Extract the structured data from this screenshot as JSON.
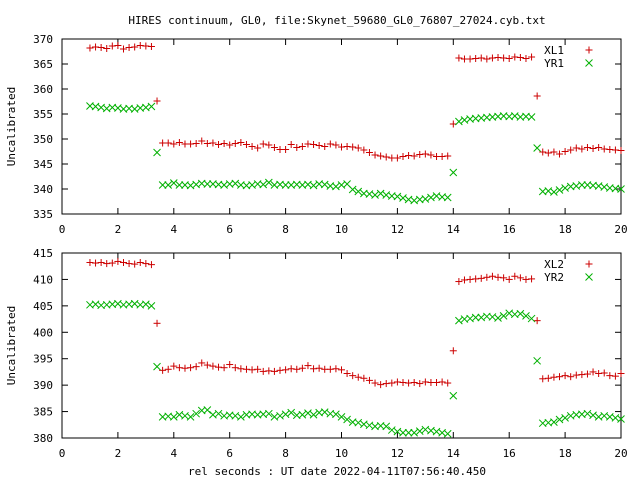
{
  "title": "HIRES continuum, GL0, file:Skynet_59680_GL0_76807_27024.cyb.txt",
  "xlabel": "rel seconds : UT date 2022-04-11T07:56:40.450",
  "chart_data": [
    {
      "type": "scatter",
      "ylabel": "Uncalibrated",
      "xlim": [
        0,
        20
      ],
      "ylim": [
        335,
        370
      ],
      "xticks": [
        0,
        2,
        4,
        6,
        8,
        10,
        12,
        14,
        16,
        18,
        20
      ],
      "yticks": [
        335,
        340,
        345,
        350,
        355,
        360,
        365,
        370
      ],
      "legend_position": "top-right",
      "series": [
        {
          "name": "XL1",
          "color": "#cc0000",
          "marker": "plus",
          "x": [
            1.0,
            1.2,
            1.4,
            1.6,
            1.8,
            2.0,
            2.2,
            2.4,
            2.6,
            2.8,
            3.0,
            3.2,
            3.4,
            3.6,
            3.8,
            4.0,
            4.2,
            4.4,
            4.6,
            4.8,
            5.0,
            5.2,
            5.4,
            5.6,
            5.8,
            6.0,
            6.2,
            6.4,
            6.6,
            6.8,
            7.0,
            7.2,
            7.4,
            7.6,
            7.8,
            8.0,
            8.2,
            8.4,
            8.6,
            8.8,
            9.0,
            9.2,
            9.4,
            9.6,
            9.8,
            10.0,
            10.2,
            10.4,
            10.6,
            10.8,
            11.0,
            11.2,
            11.4,
            11.6,
            11.8,
            12.0,
            12.2,
            12.4,
            12.6,
            12.8,
            13.0,
            13.2,
            13.4,
            13.6,
            13.8,
            14.0,
            14.2,
            14.4,
            14.6,
            14.8,
            15.0,
            15.2,
            15.4,
            15.6,
            15.8,
            16.0,
            16.2,
            16.4,
            16.6,
            16.8,
            17.0,
            17.2,
            17.4,
            17.6,
            17.8,
            18.0,
            18.2,
            18.4,
            18.6,
            18.8,
            19.0,
            19.2,
            19.4,
            19.6,
            19.8,
            20.0
          ],
          "y": [
            368.2,
            368.4,
            368.3,
            368.1,
            368.6,
            368.7,
            368.0,
            368.3,
            368.4,
            368.7,
            368.6,
            368.5,
            357.6,
            349.2,
            349.2,
            349.0,
            349.3,
            349.0,
            349.0,
            349.1,
            349.6,
            349.1,
            349.2,
            348.9,
            349.1,
            348.8,
            349.1,
            349.3,
            348.9,
            348.5,
            348.2,
            349.0,
            348.8,
            348.3,
            347.9,
            347.9,
            348.9,
            348.3,
            348.5,
            349.0,
            348.9,
            348.7,
            348.5,
            349.0,
            348.8,
            348.4,
            348.5,
            348.4,
            348.2,
            347.8,
            347.3,
            346.8,
            346.6,
            346.4,
            346.2,
            346.2,
            346.5,
            346.7,
            346.6,
            346.9,
            347.0,
            346.8,
            346.5,
            346.5,
            346.6,
            353.0,
            366.2,
            366.0,
            366.0,
            366.1,
            366.2,
            366.0,
            366.2,
            366.3,
            366.2,
            366.1,
            366.4,
            366.3,
            366.1,
            366.4,
            358.6,
            347.4,
            347.2,
            347.4,
            347.0,
            347.5,
            347.8,
            348.2,
            348.0,
            348.3,
            348.1,
            348.3,
            348.0,
            347.9,
            347.8,
            347.7
          ],
          "y_reserved_note": ""
        },
        {
          "name": "YR1",
          "color": "#00b000",
          "marker": "cross",
          "x": [
            1.0,
            1.2,
            1.4,
            1.6,
            1.8,
            2.0,
            2.2,
            2.4,
            2.6,
            2.8,
            3.0,
            3.2,
            3.4,
            3.6,
            3.8,
            4.0,
            4.2,
            4.4,
            4.6,
            4.8,
            5.0,
            5.2,
            5.4,
            5.6,
            5.8,
            6.0,
            6.2,
            6.4,
            6.6,
            6.8,
            7.0,
            7.2,
            7.4,
            7.6,
            7.8,
            8.0,
            8.2,
            8.4,
            8.6,
            8.8,
            9.0,
            9.2,
            9.4,
            9.6,
            9.8,
            10.0,
            10.2,
            10.4,
            10.6,
            10.8,
            11.0,
            11.2,
            11.4,
            11.6,
            11.8,
            12.0,
            12.2,
            12.4,
            12.6,
            12.8,
            13.0,
            13.2,
            13.4,
            13.6,
            13.8,
            14.0,
            14.2,
            14.4,
            14.6,
            14.8,
            15.0,
            15.2,
            15.4,
            15.6,
            15.8,
            16.0,
            16.2,
            16.4,
            16.6,
            16.8,
            17.0,
            17.2,
            17.4,
            17.6,
            17.8,
            18.0,
            18.2,
            18.4,
            18.6,
            18.8,
            19.0,
            19.2,
            19.4,
            19.6,
            19.8,
            20.0
          ],
          "y": [
            356.6,
            356.5,
            356.3,
            356.1,
            356.3,
            356.2,
            356.0,
            356.1,
            356.0,
            356.2,
            356.3,
            356.5,
            347.3,
            340.8,
            340.8,
            341.2,
            340.8,
            340.8,
            340.7,
            340.9,
            341.1,
            341.0,
            341.0,
            340.9,
            340.8,
            341.0,
            341.1,
            340.8,
            340.7,
            340.8,
            341.0,
            340.9,
            341.3,
            340.8,
            340.9,
            340.8,
            340.8,
            340.9,
            340.8,
            340.9,
            340.7,
            341.0,
            340.9,
            340.6,
            340.5,
            340.8,
            341.0,
            339.9,
            339.5,
            339.1,
            339.0,
            338.8,
            339.1,
            338.8,
            338.6,
            338.5,
            338.2,
            337.9,
            337.7,
            337.9,
            338.0,
            338.3,
            338.6,
            338.4,
            338.3,
            343.3,
            353.5,
            353.8,
            354.0,
            354.1,
            354.2,
            354.3,
            354.4,
            354.5,
            354.6,
            354.5,
            354.6,
            354.4,
            354.5,
            354.4,
            348.2,
            339.5,
            339.6,
            339.4,
            339.8,
            340.2,
            340.5,
            340.6,
            340.8,
            340.8,
            340.7,
            340.6,
            340.4,
            340.2,
            340.1,
            340.0
          ]
        }
      ]
    },
    {
      "type": "scatter",
      "ylabel": "Uncalibrated",
      "xlim": [
        0,
        20
      ],
      "ylim": [
        380,
        415
      ],
      "xticks": [
        0,
        2,
        4,
        6,
        8,
        10,
        12,
        14,
        16,
        18,
        20
      ],
      "yticks": [
        380,
        385,
        390,
        395,
        400,
        405,
        410,
        415
      ],
      "legend_position": "top-right",
      "series": [
        {
          "name": "XL2",
          "color": "#cc0000",
          "marker": "plus",
          "x": [
            1.0,
            1.2,
            1.4,
            1.6,
            1.8,
            2.0,
            2.2,
            2.4,
            2.6,
            2.8,
            3.0,
            3.2,
            3.4,
            3.6,
            3.8,
            4.0,
            4.2,
            4.4,
            4.6,
            4.8,
            5.0,
            5.2,
            5.4,
            5.6,
            5.8,
            6.0,
            6.2,
            6.4,
            6.6,
            6.8,
            7.0,
            7.2,
            7.4,
            7.6,
            7.8,
            8.0,
            8.2,
            8.4,
            8.6,
            8.8,
            9.0,
            9.2,
            9.4,
            9.6,
            9.8,
            10.0,
            10.2,
            10.4,
            10.6,
            10.8,
            11.0,
            11.2,
            11.4,
            11.6,
            11.8,
            12.0,
            12.2,
            12.4,
            12.6,
            12.8,
            13.0,
            13.2,
            13.4,
            13.6,
            13.8,
            14.0,
            14.2,
            14.4,
            14.6,
            14.8,
            15.0,
            15.2,
            15.4,
            15.6,
            15.8,
            16.0,
            16.2,
            16.4,
            16.6,
            16.8,
            17.0,
            17.2,
            17.4,
            17.6,
            17.8,
            18.0,
            18.2,
            18.4,
            18.6,
            18.8,
            19.0,
            19.2,
            19.4,
            19.6,
            19.8,
            20.0
          ],
          "y": [
            413.2,
            413.1,
            413.2,
            413.0,
            413.1,
            413.4,
            413.2,
            413.0,
            412.9,
            413.2,
            413.0,
            412.8,
            401.7,
            392.8,
            393.0,
            393.6,
            393.3,
            393.2,
            393.3,
            393.5,
            394.2,
            393.8,
            393.6,
            393.4,
            393.3,
            393.9,
            393.3,
            393.1,
            393.0,
            392.9,
            393.0,
            392.6,
            392.7,
            392.6,
            392.8,
            392.9,
            393.1,
            393.0,
            393.2,
            393.7,
            393.1,
            393.2,
            393.0,
            393.0,
            393.1,
            392.9,
            392.2,
            391.8,
            391.5,
            391.3,
            390.9,
            390.4,
            390.1,
            390.3,
            390.4,
            390.6,
            390.5,
            390.4,
            390.5,
            390.3,
            390.6,
            390.5,
            390.5,
            390.6,
            390.4,
            396.5,
            409.6,
            409.9,
            410.0,
            410.1,
            410.2,
            410.4,
            410.6,
            410.4,
            410.3,
            410.0,
            410.6,
            410.3,
            410.0,
            410.1,
            402.2,
            391.2,
            391.3,
            391.5,
            391.6,
            391.8,
            391.6,
            391.9,
            392.0,
            392.1,
            392.5,
            392.2,
            392.3,
            391.8,
            391.7,
            392.2
          ]
        },
        {
          "name": "YR2",
          "color": "#00b000",
          "marker": "cross",
          "x": [
            1.0,
            1.2,
            1.4,
            1.6,
            1.8,
            2.0,
            2.2,
            2.4,
            2.6,
            2.8,
            3.0,
            3.2,
            3.4,
            3.6,
            3.8,
            4.0,
            4.2,
            4.4,
            4.6,
            4.8,
            5.0,
            5.2,
            5.4,
            5.6,
            5.8,
            6.0,
            6.2,
            6.4,
            6.6,
            6.8,
            7.0,
            7.2,
            7.4,
            7.6,
            7.8,
            8.0,
            8.2,
            8.4,
            8.6,
            8.8,
            9.0,
            9.2,
            9.4,
            9.6,
            9.8,
            10.0,
            10.2,
            10.4,
            10.6,
            10.8,
            11.0,
            11.2,
            11.4,
            11.6,
            11.8,
            12.0,
            12.2,
            12.4,
            12.6,
            12.8,
            13.0,
            13.2,
            13.4,
            13.6,
            13.8,
            14.0,
            14.2,
            14.4,
            14.6,
            14.8,
            15.0,
            15.2,
            15.4,
            15.6,
            15.8,
            16.0,
            16.2,
            16.4,
            16.6,
            16.8,
            17.0,
            17.2,
            17.4,
            17.6,
            17.8,
            18.0,
            18.2,
            18.4,
            18.6,
            18.8,
            19.0,
            19.2,
            19.4,
            19.6,
            19.8,
            20.0
          ],
          "y": [
            405.2,
            405.3,
            405.1,
            405.2,
            405.3,
            405.4,
            405.2,
            405.3,
            405.4,
            405.2,
            405.3,
            405.0,
            393.5,
            384.0,
            384.1,
            384.0,
            384.4,
            384.2,
            384.0,
            384.6,
            385.2,
            385.3,
            384.4,
            384.6,
            384.2,
            384.3,
            384.2,
            384.0,
            384.4,
            384.5,
            384.4,
            384.5,
            384.6,
            384.0,
            384.2,
            384.5,
            384.8,
            384.3,
            384.4,
            384.7,
            384.4,
            384.8,
            384.9,
            384.6,
            384.5,
            384.0,
            383.5,
            383.0,
            382.9,
            382.6,
            382.4,
            382.2,
            382.3,
            382.2,
            381.5,
            381.2,
            381.0,
            381.0,
            381.0,
            381.3,
            381.6,
            381.4,
            381.2,
            381.0,
            380.8,
            388.0,
            402.2,
            402.5,
            402.6,
            402.8,
            402.8,
            403.0,
            402.9,
            402.7,
            403.1,
            403.6,
            403.4,
            403.5,
            403.1,
            402.6,
            394.6,
            382.8,
            382.9,
            383.0,
            383.5,
            383.8,
            384.2,
            384.4,
            384.5,
            384.6,
            384.3,
            384.0,
            384.2,
            384.0,
            383.8,
            383.6
          ]
        }
      ]
    }
  ]
}
